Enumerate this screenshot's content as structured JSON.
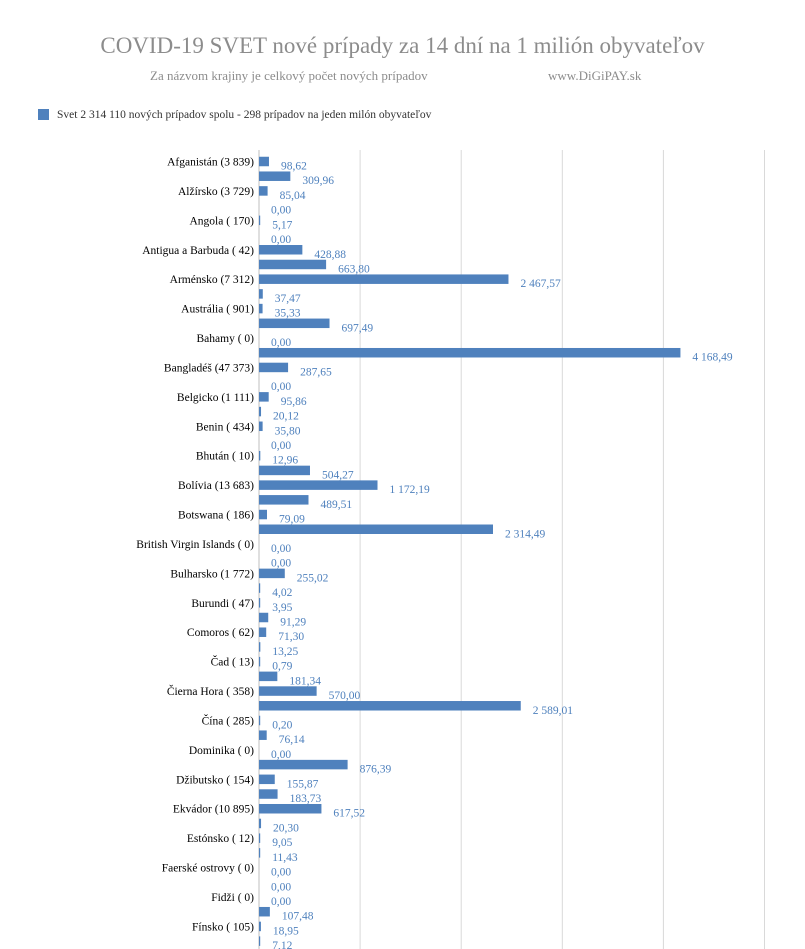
{
  "header": {
    "title": "COVID-19 SVET nové prípady za 14 dní  na 1 milión obyvateľov",
    "subtitle": "Za názvom krajiny je celkový počet nových prípadov",
    "site": "www.DiGiPAY.sk"
  },
  "legend": {
    "label": "Svet 2 314 110 nových prípadov spolu -  298 prípadov na jeden milón obyvateľov"
  },
  "chart_data": {
    "type": "bar",
    "orientation": "horizontal",
    "grid": true,
    "xlim": [
      0,
      5000
    ],
    "bar_color": "#4f81bd",
    "series": [
      {
        "name": "Svet 2 314 110 nových prípadov spolu -  298 prípadov na jeden milón obyvateľov"
      }
    ],
    "data_labels": [
      "98,62",
      "309,96",
      "85,04",
      "0,00",
      "5,17",
      "0,00",
      "428,88",
      "663,80",
      "2 467,57",
      "37,47",
      "35,33",
      "697,49",
      "0,00",
      "4 168,49",
      "287,65",
      "0,00",
      "95,86",
      "20,12",
      "35,80",
      "0,00",
      "12,96",
      "504,27",
      "1 172,19",
      "489,51",
      "79,09",
      "2 314,49",
      "0,00",
      "0,00",
      "255,02",
      "4,02",
      "3,95",
      "91,29",
      "71,30",
      "13,25",
      "0,79",
      "181,34",
      "570,00",
      "2 589,01",
      "0,20",
      "76,14",
      "0,00",
      "876,39",
      "155,87",
      "183,73",
      "617,52",
      "20,30",
      "9,05",
      "11,43",
      "0,00",
      "0,00",
      "0,00",
      "107,48",
      "18,95",
      "7,12"
    ],
    "values": [
      98.62,
      309.96,
      85.04,
      0,
      5.17,
      0,
      428.88,
      663.8,
      2467.57,
      37.47,
      35.33,
      697.49,
      0,
      4168.49,
      287.65,
      0,
      95.86,
      20.12,
      35.8,
      0,
      12.96,
      504.27,
      1172.19,
      489.51,
      79.09,
      2314.49,
      0,
      0,
      255.02,
      4.02,
      3.95,
      91.29,
      71.3,
      13.25,
      0.79,
      181.34,
      570.0,
      2589.01,
      0.2,
      76.14,
      0,
      876.39,
      155.87,
      183.73,
      617.52,
      20.3,
      9.05,
      11.43,
      0,
      0,
      0,
      107.48,
      18.95,
      7.12
    ],
    "category_labels": [
      {
        "label": "Afganistán (3 839)",
        "row": 0
      },
      {
        "label": "Alžírsko (3 729)",
        "row": 2
      },
      {
        "label": "Angola ( 170)",
        "row": 4
      },
      {
        "label": "Antigua a Barbuda ( 42)",
        "row": 6
      },
      {
        "label": "Arménsko (7 312)",
        "row": 8
      },
      {
        "label": "Austrália ( 901)",
        "row": 10
      },
      {
        "label": "Bahamy ( 0)",
        "row": 12
      },
      {
        "label": "Bangladéš (47 373)",
        "row": 14
      },
      {
        "label": "Belgicko (1 111)",
        "row": 16
      },
      {
        "label": "Benin ( 434)",
        "row": 18
      },
      {
        "label": "Bhután ( 10)",
        "row": 20
      },
      {
        "label": "Bolívia (13 683)",
        "row": 22
      },
      {
        "label": "Botswana ( 186)",
        "row": 24
      },
      {
        "label": "British Virgin Islands ( 0)",
        "row": 26
      },
      {
        "label": "Bulharsko (1 772)",
        "row": 28
      },
      {
        "label": "Burundi ( 47)",
        "row": 30
      },
      {
        "label": "Comoros ( 62)",
        "row": 32
      },
      {
        "label": "Čad ( 13)",
        "row": 34
      },
      {
        "label": "Čierna Hora ( 358)",
        "row": 36
      },
      {
        "label": "Čína ( 285)",
        "row": 38
      },
      {
        "label": "Dominika ( 0)",
        "row": 40
      },
      {
        "label": "Džibutsko ( 154)",
        "row": 42
      },
      {
        "label": "Ekvádor (10 895)",
        "row": 44
      },
      {
        "label": "Estónsko ( 12)",
        "row": 46
      },
      {
        "label": "Faerské ostrovy ( 0)",
        "row": 48
      },
      {
        "label": "Fidži ( 0)",
        "row": 50
      },
      {
        "label": "Fínsko ( 105)",
        "row": 52
      }
    ]
  }
}
